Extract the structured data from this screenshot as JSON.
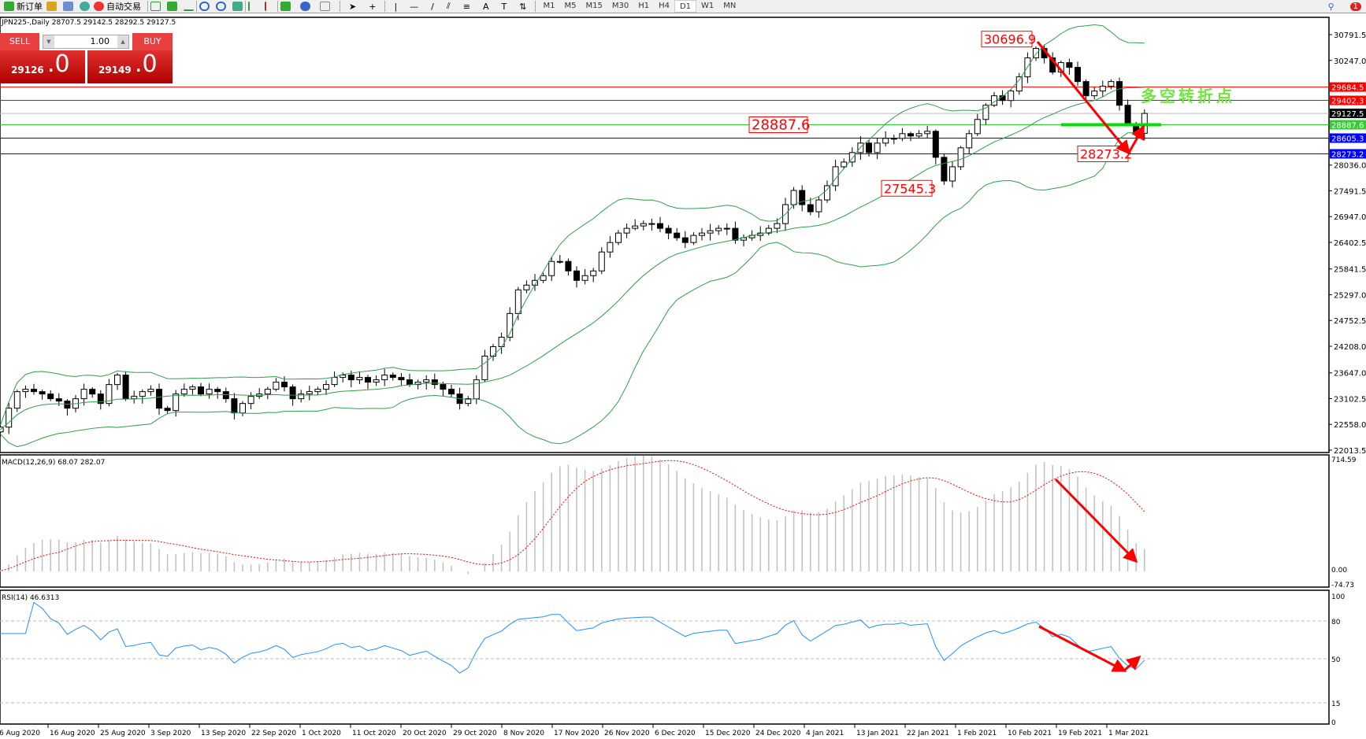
{
  "toolbar": {
    "new_order": "新订单",
    "auto_trading": "自动交易",
    "timeframes": [
      "M1",
      "M5",
      "M15",
      "M30",
      "H1",
      "H4",
      "D1",
      "W1",
      "MN"
    ],
    "active_timeframe": "D1",
    "notification_count": "1"
  },
  "chart_title": "JPN225-,Daily  28707.5 29142.5 28292.5 29127.5",
  "trade_panel": {
    "sell": "SELL",
    "buy": "BUY",
    "lot": "1.00",
    "sell_price_main": "29126",
    "sell_price_frac": ".0",
    "buy_price_main": "29149",
    "buy_price_frac": ".0"
  },
  "colors": {
    "bands": "#2e9e4e",
    "macd_hist": "#c0c0c0",
    "macd_signal": "#ff0000",
    "rsi": "#1e90ff",
    "arrow": "#ff0000",
    "resistance": "#ff0000",
    "support": "#0000ff",
    "pivot": "#00e000"
  },
  "price_axis": {
    "ticks": [
      "30791.5",
      "30247.0",
      "28036.0",
      "27491.5",
      "26947.0",
      "26402.5",
      "25841.5",
      "25297.0",
      "24752.5",
      "24208.0",
      "23647.0",
      "23102.5",
      "22558.0",
      "22013.5"
    ],
    "range": [
      22013.5,
      30791.5
    ]
  },
  "levels": [
    {
      "value": 29684.5,
      "label": "29684.5",
      "color": "#ff0000"
    },
    {
      "value": 29402.3,
      "label": "29402.3",
      "color": "#ff0000"
    },
    {
      "value": 29127.5,
      "label": "29127.5",
      "color": "#000000"
    },
    {
      "value": 28887.6,
      "label": "28887.6",
      "color": "#33cc33"
    },
    {
      "value": 28605.3,
      "label": "28605.3",
      "color": "#0000ff"
    },
    {
      "value": 28273.2,
      "label": "28273.2",
      "color": "#0000ff"
    }
  ],
  "annotations": [
    {
      "value": 30696.9,
      "label": "30696.9"
    },
    {
      "value": 28887.6,
      "label": "28887.6"
    },
    {
      "value": 27545.3,
      "label": "27545.3"
    },
    {
      "value": 28273.2,
      "label": "28273.2"
    }
  ],
  "turning_point_text": "多空转折点",
  "macd": {
    "label": "MACD(12,26,9) 68.07 282.07",
    "ticks": [
      "714.59",
      "0.00",
      "-74.73"
    ],
    "range": [
      -74.73,
      714.59
    ]
  },
  "rsi": {
    "label": "RSI(14) 46.6313",
    "ticks": [
      "100",
      "80",
      "50",
      "15",
      "0"
    ],
    "levels": [
      80,
      50,
      15
    ]
  },
  "date_axis": [
    "6 Aug 2020",
    "16 Aug 2020",
    "25 Aug 2020",
    "3 Sep 2020",
    "13 Sep 2020",
    "22 Sep 2020",
    "1 Oct 2020",
    "11 Oct 2020",
    "20 Oct 2020",
    "29 Oct 2020",
    "8 Nov 2020",
    "17 Nov 2020",
    "26 Nov 2020",
    "6 Dec 2020",
    "15 Dec 2020",
    "24 Dec 2020",
    "4 Jan 2021",
    "13 Jan 2021",
    "22 Jan 2021",
    "1 Feb 2021",
    "10 Feb 2021",
    "19 Feb 2021",
    "1 Mar 2021"
  ],
  "chart_data": {
    "type": "candlestick",
    "symbol": "JPN225-",
    "period": "Daily",
    "closes": [
      22400,
      22500,
      22900,
      23250,
      23300,
      23250,
      23200,
      23100,
      23050,
      22900,
      23100,
      23300,
      23200,
      23000,
      23400,
      23600,
      23100,
      23150,
      23250,
      23300,
      22900,
      22850,
      23200,
      23300,
      23350,
      23200,
      23300,
      23250,
      23100,
      22800,
      23000,
      23150,
      23200,
      23300,
      23450,
      23350,
      23100,
      23200,
      23250,
      23300,
      23400,
      23550,
      23600,
      23500,
      23550,
      23450,
      23500,
      23600,
      23550,
      23500,
      23400,
      23450,
      23500,
      23400,
      23300,
      23200,
      23000,
      23100,
      23500,
      24000,
      24200,
      24400,
      24900,
      25400,
      25500,
      25600,
      25700,
      26000,
      26000,
      25800,
      25600,
      25700,
      25800,
      26200,
      26400,
      26600,
      26700,
      26750,
      26800,
      26800,
      26700,
      26600,
      26500,
      26400,
      26550,
      26600,
      26650,
      26700,
      26700,
      26450,
      26500,
      26550,
      26600,
      26700,
      26800,
      27200,
      27500,
      27200,
      27050,
      27300,
      27600,
      28000,
      28100,
      28300,
      28500,
      28300,
      28500,
      28600,
      28600,
      28700,
      28650,
      28700,
      28750,
      28200,
      27700,
      28000,
      28400,
      28700,
      29000,
      29300,
      29500,
      29400,
      29600,
      29900,
      30300,
      30500,
      30300,
      30000,
      30200,
      30100,
      29800,
      29500,
      29600,
      29700,
      29800,
      29300,
      28900,
      28707.5,
      29127.5
    ]
  }
}
